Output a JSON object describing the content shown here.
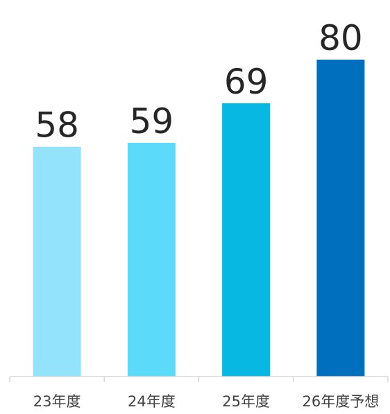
{
  "chart_data": {
    "type": "bar",
    "categories": [
      "23年度",
      "24年度",
      "25年度",
      "26年度予想"
    ],
    "values": [
      58,
      59,
      69,
      80
    ],
    "value_labels": [
      "58",
      "59",
      "69",
      "80"
    ],
    "bar_colors": [
      "#92E3FB",
      "#5CDAF9",
      "#06B8E2",
      "#006FBE"
    ],
    "ylim": [
      0,
      80
    ],
    "grid": false,
    "legend": "none",
    "data_labels": "above bars"
  }
}
